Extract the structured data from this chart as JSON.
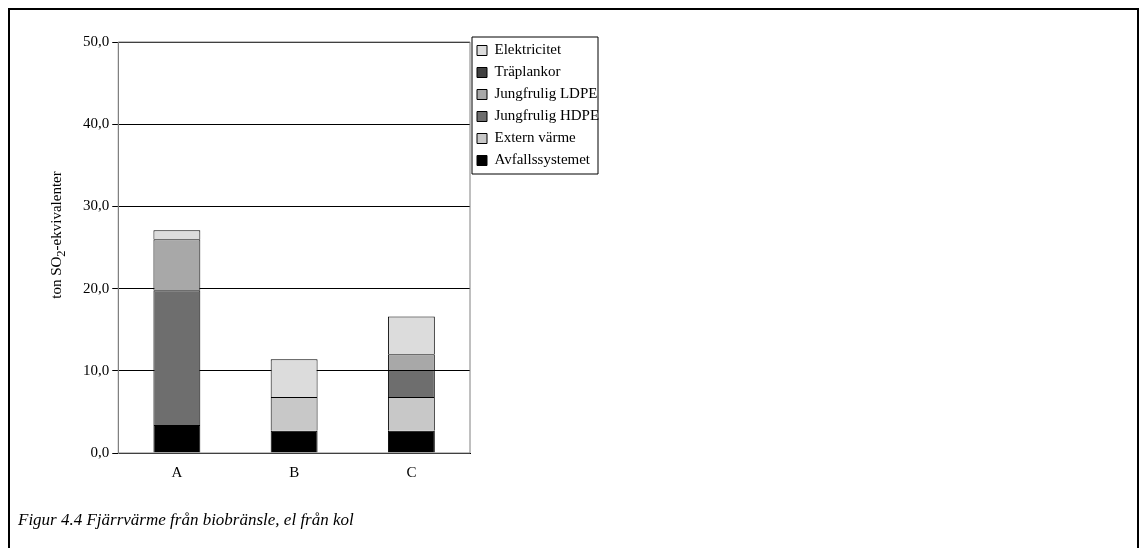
{
  "chart_data": {
    "type": "bar",
    "stacked": true,
    "ylabel": "ton SO$_{2}$-ekvivalenter",
    "categories": [
      "A",
      "B",
      "C"
    ],
    "series": [
      {
        "name": "Avfallssystemet",
        "color": "#000000",
        "values": [
          3.4,
          2.7,
          2.7
        ]
      },
      {
        "name": "Extern värme",
        "color": "#c8c8c8",
        "values": [
          0,
          4.1,
          4.1
        ]
      },
      {
        "name": "Jungfrulig HDPE",
        "color": "#6e6e6e",
        "values": [
          16.4,
          0,
          3.3
        ]
      },
      {
        "name": "Jungfrulig LDPE",
        "color": "#a8a8a8",
        "values": [
          6.2,
          0,
          1.9
        ]
      },
      {
        "name": "Träplankor",
        "color": "#404040",
        "values": [
          0,
          0,
          0
        ]
      },
      {
        "name": "Elektricitet",
        "color": "#dcdcdc",
        "values": [
          1.1,
          4.6,
          4.6
        ]
      }
    ],
    "ylim": [
      0,
      50
    ],
    "yticks": [
      {
        "value": 0,
        "label": "0,0"
      },
      {
        "value": 10,
        "label": "10,0"
      },
      {
        "value": 20,
        "label": "20,0"
      },
      {
        "value": 30,
        "label": "30,0"
      },
      {
        "value": 40,
        "label": "40,0"
      },
      {
        "value": 50,
        "label": "50,0"
      }
    ],
    "grid": "y",
    "legend": "top right",
    "annotations": [
      "Figur 4.4 Fjärrvärme från biobränsle, el från kol"
    ]
  }
}
